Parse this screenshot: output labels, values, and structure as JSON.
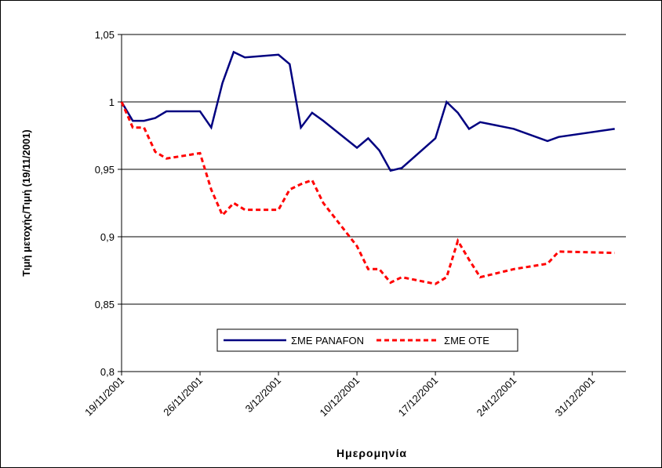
{
  "chart_data": {
    "type": "line",
    "x_label": "Ημερομηνία",
    "y_label": "Τιμή μετοχής/Τιμή (19/11/2001)",
    "x": [
      "19/11/2001",
      "20/11/2001",
      "21/11/2001",
      "22/11/2001",
      "23/11/2001",
      "26/11/2001",
      "27/11/2001",
      "28/11/2001",
      "29/11/2001",
      "30/11/2001",
      "03/12/2001",
      "04/12/2001",
      "05/12/2001",
      "06/12/2001",
      "07/12/2001",
      "10/12/2001",
      "11/12/2001",
      "12/12/2001",
      "13/12/2001",
      "14/12/2001",
      "17/12/2001",
      "18/12/2001",
      "19/12/2001",
      "20/12/2001",
      "21/12/2001",
      "24/12/2001",
      "27/12/2001",
      "28/12/2001",
      "02/01/2002"
    ],
    "series": [
      {
        "name": "ΣΜΕ PANAFON",
        "color": "#000080",
        "dash": "solid",
        "values": [
          1.0,
          0.986,
          0.986,
          0.988,
          0.993,
          0.993,
          0.981,
          1.014,
          1.037,
          1.033,
          1.035,
          1.028,
          0.981,
          0.992,
          0.986,
          0.966,
          0.973,
          0.964,
          0.949,
          0.951,
          0.973,
          1.0,
          0.992,
          0.98,
          0.985,
          0.98,
          0.971,
          0.974,
          0.98
        ]
      },
      {
        "name": "ΣΜΕ ΟΤΕ",
        "color": "#ff0000",
        "dash": "dashed",
        "values": [
          1.0,
          0.981,
          0.981,
          0.963,
          0.958,
          0.962,
          0.935,
          0.916,
          0.925,
          0.92,
          0.92,
          0.935,
          0.939,
          0.942,
          0.925,
          0.893,
          0.876,
          0.876,
          0.866,
          0.87,
          0.865,
          0.87,
          0.897,
          0.883,
          0.87,
          0.876,
          0.88,
          0.889,
          0.888
        ]
      }
    ],
    "xlim": [
      "19/11/2001",
      "03/01/2002"
    ],
    "xticks": [
      "19/11/2001",
      "26/11/2001",
      "03/12/2001",
      "10/12/2001",
      "17/12/2001",
      "24/12/2001",
      "31/12/2001"
    ],
    "xtick_labels": [
      "19/11/2001",
      "26/11/2001",
      "3/12/2001",
      "10/12/2001",
      "17/12/2001",
      "24/12/2001",
      "31/12/2001"
    ],
    "ylim": [
      0.8,
      1.05
    ],
    "yticks": [
      {
        "value": 0.8,
        "label": "0,8"
      },
      {
        "value": 0.85,
        "label": "0,85"
      },
      {
        "value": 0.9,
        "label": "0,9"
      },
      {
        "value": 0.95,
        "label": "0,95"
      },
      {
        "value": 1,
        "label": "1"
      },
      {
        "value": 1.05,
        "label": "1,05"
      }
    ],
    "grid": true
  }
}
